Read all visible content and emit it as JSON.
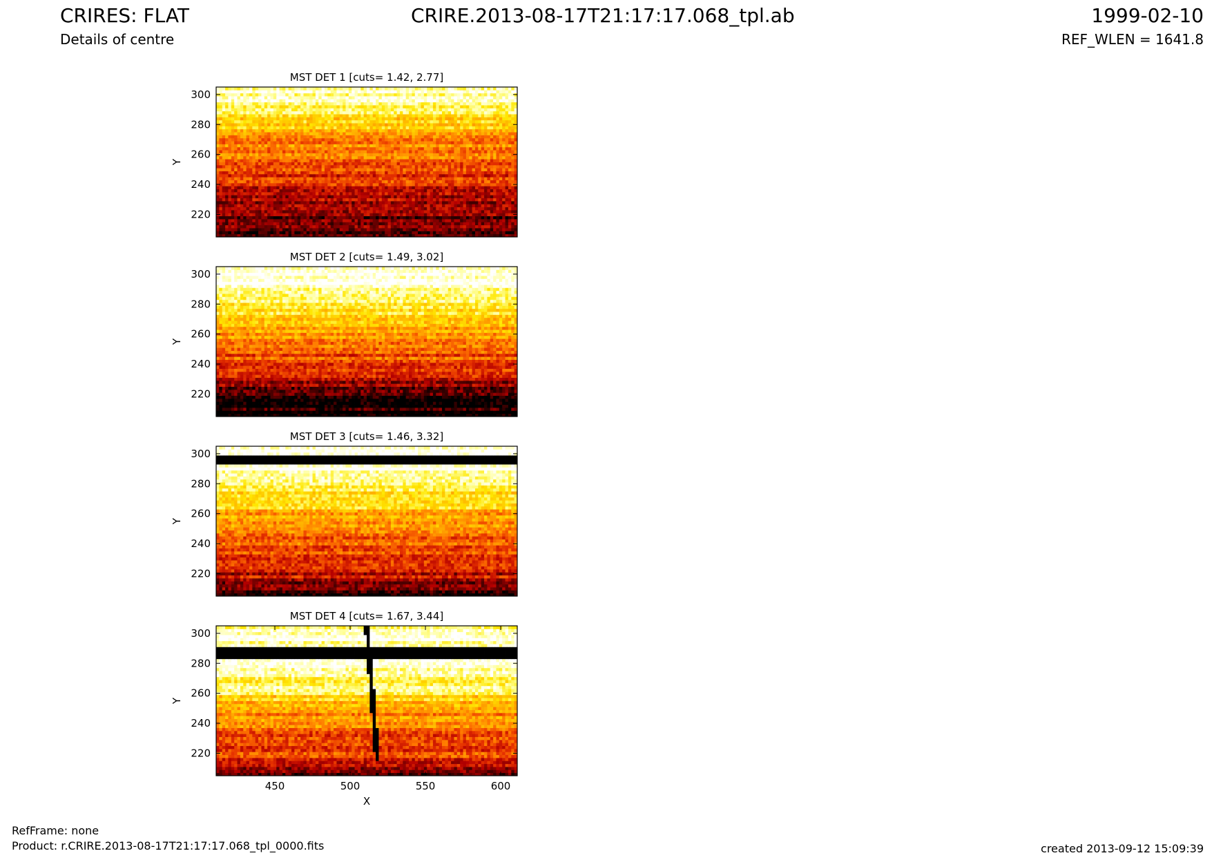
{
  "header": {
    "title_left": "CRIRES: FLAT",
    "subtitle_left": "Details of centre",
    "title_center": "CRIRE.2013-08-17T21:17:17.068_tpl.ab",
    "title_right": "1999-02-10",
    "subtitle_right": "REF_WLEN = 1641.8"
  },
  "footer": {
    "refframe": "RefFrame: none",
    "product": "Product: r.CRIRE.2013-08-17T21:17:17.068_tpl_0000.fits",
    "created": "created 2013-09-12 15:09:39"
  },
  "colors": {
    "colormap": [
      "#000000",
      "#5a0000",
      "#b40000",
      "#e63200",
      "#ff7800",
      "#ffb400",
      "#ffe600",
      "#ffff96",
      "#ffffff"
    ]
  },
  "chart_data": [
    {
      "type": "heatmap",
      "title": "MST DET 1 [cuts= 1.42, 2.77]",
      "xlabel": "",
      "ylabel": "Y",
      "xlim": [
        411,
        611
      ],
      "ylim": [
        205,
        305
      ],
      "yticks": [
        220,
        240,
        260,
        280,
        300
      ],
      "xticks": [],
      "cuts": [
        1.42,
        2.77
      ],
      "profile": {
        "y_bright_top": 300,
        "y_dark_bottom": 205,
        "description_values": [
          [
            205,
            0.1
          ],
          [
            225,
            0.2
          ],
          [
            240,
            0.35
          ],
          [
            255,
            0.45
          ],
          [
            270,
            0.55
          ],
          [
            285,
            0.75
          ],
          [
            300,
            0.95
          ]
        ]
      },
      "features": []
    },
    {
      "type": "heatmap",
      "title": "MST DET 2 [cuts= 1.49, 3.02]",
      "xlabel": "",
      "ylabel": "Y",
      "xlim": [
        411,
        611
      ],
      "ylim": [
        205,
        305
      ],
      "yticks": [
        220,
        240,
        260,
        280,
        300
      ],
      "xticks": [],
      "cuts": [
        1.49,
        3.02
      ],
      "profile": {
        "description_values": [
          [
            205,
            0.03
          ],
          [
            220,
            0.08
          ],
          [
            230,
            0.3
          ],
          [
            240,
            0.4
          ],
          [
            250,
            0.5
          ],
          [
            260,
            0.55
          ],
          [
            270,
            0.7
          ],
          [
            280,
            0.85
          ],
          [
            290,
            0.95
          ],
          [
            300,
            0.98
          ]
        ]
      },
      "features": []
    },
    {
      "type": "heatmap",
      "title": "MST DET 3 [cuts= 1.46, 3.32]",
      "xlabel": "",
      "ylabel": "Y",
      "xlim": [
        411,
        611
      ],
      "ylim": [
        205,
        305
      ],
      "yticks": [
        220,
        240,
        260,
        280,
        300
      ],
      "xticks": [],
      "cuts": [
        1.46,
        3.32
      ],
      "profile": {
        "description_values": [
          [
            205,
            0.1
          ],
          [
            215,
            0.25
          ],
          [
            230,
            0.4
          ],
          [
            245,
            0.45
          ],
          [
            255,
            0.55
          ],
          [
            265,
            0.7
          ],
          [
            275,
            0.8
          ],
          [
            285,
            0.97
          ],
          [
            300,
            1.0
          ]
        ]
      },
      "features": [
        {
          "kind": "dark_band",
          "y": [
            293,
            299
          ]
        }
      ]
    },
    {
      "type": "heatmap",
      "title": "MST DET 4 [cuts= 1.67, 3.44]",
      "xlabel": "X",
      "ylabel": "Y",
      "xlim": [
        411,
        611
      ],
      "ylim": [
        205,
        305
      ],
      "yticks": [
        220,
        240,
        260,
        280,
        300
      ],
      "xticks": [
        450,
        500,
        550,
        600
      ],
      "cuts": [
        1.67,
        3.44
      ],
      "profile": {
        "description_values": [
          [
            205,
            0.15
          ],
          [
            215,
            0.35
          ],
          [
            230,
            0.45
          ],
          [
            245,
            0.55
          ],
          [
            255,
            0.7
          ],
          [
            265,
            0.82
          ],
          [
            275,
            0.95
          ],
          [
            282,
            1.0
          ],
          [
            295,
            0.95
          ],
          [
            303,
            0.9
          ]
        ]
      },
      "features": [
        {
          "kind": "dark_band",
          "y": [
            283,
            290
          ]
        },
        {
          "kind": "dark_line",
          "x": [
            510,
            517
          ],
          "y": [
            215,
            305
          ]
        }
      ]
    }
  ]
}
